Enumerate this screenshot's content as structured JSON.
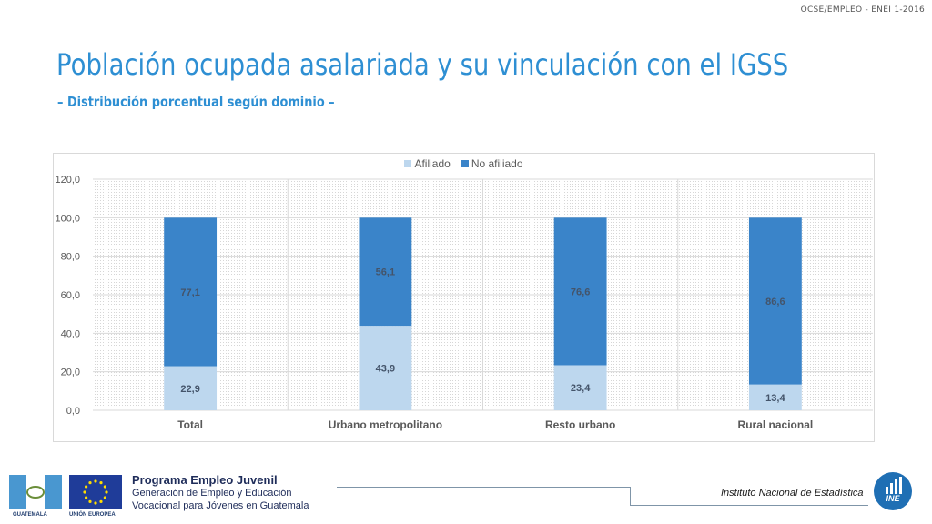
{
  "header": {
    "code": "OCSE/EMPLEO - ENEI 1-2016",
    "title": "Población ocupada asalariada y su vinculación con el IGSS",
    "subtitle": "– Distribución porcentual según dominio –"
  },
  "chart_data": {
    "type": "bar",
    "stacked": true,
    "categories": [
      "Total",
      "Urbano metropolitano",
      "Resto urbano",
      "Rural nacional"
    ],
    "series": [
      {
        "name": "Afiliado",
        "values": [
          22.9,
          43.9,
          23.4,
          13.4
        ],
        "value_labels": [
          "22,9",
          "43,9",
          "23,4",
          "13,4"
        ],
        "color": "#bdd7ee"
      },
      {
        "name": "No afiliado",
        "values": [
          77.1,
          56.1,
          76.6,
          86.6
        ],
        "value_labels": [
          "77,1",
          "56,1",
          "76,6",
          "86,6"
        ],
        "color": "#3a84c9"
      }
    ],
    "ylim": [
      0,
      120
    ],
    "yticks": [
      0,
      20,
      40,
      60,
      80,
      100,
      120
    ],
    "ytick_labels": [
      "0,0",
      "20,0",
      "40,0",
      "60,0",
      "80,0",
      "100,0",
      "120,0"
    ],
    "grid": true,
    "legend_position": "top",
    "label_color": "#44546a"
  },
  "footer": {
    "left_caption_1": "GUATEMALA",
    "left_caption_2": "UNIÓN EUROPEA",
    "program_title": "Programa Empleo Juvenil",
    "program_line_1": "Generación de Empleo y Educación",
    "program_line_2": "Vocacional para Jóvenes en Guatemala",
    "institute": "Instituto Nacional de Estadística",
    "logo_text": "INE"
  }
}
